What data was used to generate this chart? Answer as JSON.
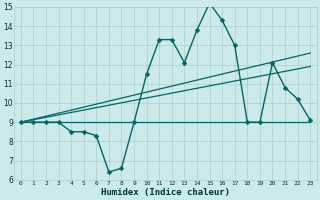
{
  "main_x": [
    0,
    1,
    2,
    3,
    4,
    5,
    6,
    7,
    8,
    9,
    10,
    11,
    12,
    13,
    14,
    15,
    16,
    17,
    18,
    19,
    20,
    21,
    22,
    23
  ],
  "main_y": [
    9.0,
    9.0,
    9.0,
    9.0,
    8.5,
    8.5,
    8.3,
    6.4,
    6.6,
    9.0,
    11.5,
    13.3,
    13.3,
    12.1,
    13.8,
    15.2,
    14.3,
    13.0,
    9.0,
    9.0,
    12.1,
    10.8,
    10.2,
    9.1
  ],
  "trend1_x": [
    0,
    23
  ],
  "trend1_y": [
    9.0,
    12.6
  ],
  "trend2_x": [
    0,
    23
  ],
  "trend2_y": [
    9.0,
    11.9
  ],
  "trend3_x": [
    0,
    23
  ],
  "trend3_y": [
    9.0,
    9.0
  ],
  "xlabel": "Humidex (Indice chaleur)",
  "xlim": [
    -0.5,
    23.5
  ],
  "ylim": [
    6,
    15
  ],
  "yticks": [
    6,
    7,
    8,
    9,
    10,
    11,
    12,
    13,
    14,
    15
  ],
  "xticks": [
    0,
    1,
    2,
    3,
    4,
    5,
    6,
    7,
    8,
    9,
    10,
    11,
    12,
    13,
    14,
    15,
    16,
    17,
    18,
    19,
    20,
    21,
    22,
    23
  ],
  "bg_color": "#cceaea",
  "line_color": "#006666",
  "grid_color": "#aacece",
  "markersize": 2.5,
  "linewidth": 1.0,
  "trend_linewidth": 0.9
}
